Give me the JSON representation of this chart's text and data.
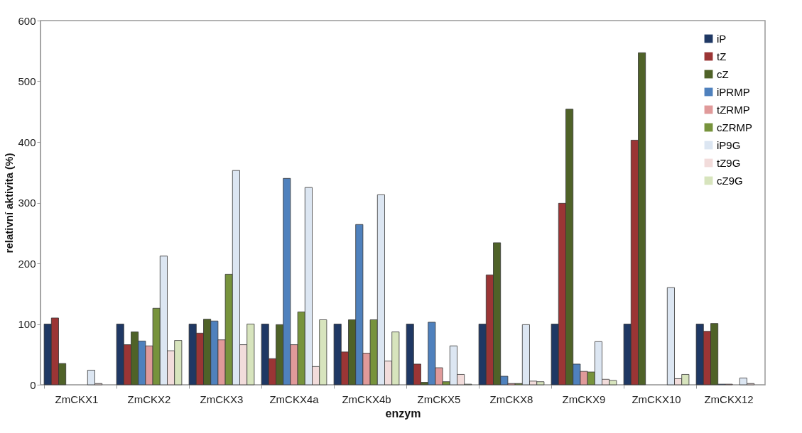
{
  "chart_data": {
    "type": "bar",
    "xlabel": "enzym",
    "ylabel": "relativní aktivita (%)",
    "categories": [
      "ZmCKX1",
      "ZmCKX2",
      "ZmCKX3",
      "ZmCKX4a",
      "ZmCKX4b",
      "ZmCKX5",
      "ZmCKX8",
      "ZmCKX9",
      "ZmCKX10",
      "ZmCKX12"
    ],
    "series": [
      {
        "name": "iP",
        "color": "#1f3864",
        "values": [
          100,
          100,
          100,
          100,
          100,
          100,
          100,
          100,
          100,
          100
        ]
      },
      {
        "name": "tZ",
        "color": "#9b3535",
        "values": [
          110,
          66,
          85,
          43,
          54,
          34,
          181,
          299,
          403,
          88
        ]
      },
      {
        "name": "cZ",
        "color": "#4f6228",
        "values": [
          35,
          87,
          108,
          99,
          107,
          4,
          234,
          454,
          547,
          101
        ]
      },
      {
        "name": "iPRMP",
        "color": "#4f81bd",
        "values": [
          0,
          72,
          105,
          340,
          264,
          103,
          14,
          34,
          0,
          1
        ]
      },
      {
        "name": "tZRMP",
        "color": "#e09a9a",
        "values": [
          0,
          64,
          74,
          66,
          52,
          28,
          2,
          22,
          0,
          1
        ]
      },
      {
        "name": "cZRMP",
        "color": "#77933c",
        "values": [
          0,
          126,
          182,
          120,
          107,
          5,
          2,
          21,
          0,
          0
        ]
      },
      {
        "name": "iP9G",
        "color": "#dce6f2",
        "values": [
          24,
          212,
          353,
          325,
          313,
          64,
          99,
          71,
          160,
          11
        ]
      },
      {
        "name": "tZ9G",
        "color": "#f2dcdb",
        "values": [
          2,
          56,
          66,
          30,
          39,
          17,
          6,
          9,
          10,
          2
        ]
      },
      {
        "name": "cZ9G",
        "color": "#d7e4bd",
        "values": [
          0,
          73,
          100,
          107,
          87,
          1,
          5,
          7,
          17,
          0
        ]
      }
    ],
    "ylim": [
      0,
      600
    ],
    "yticks": [
      0,
      100,
      200,
      300,
      400,
      500,
      600
    ],
    "grid": false,
    "legend": "top right"
  }
}
